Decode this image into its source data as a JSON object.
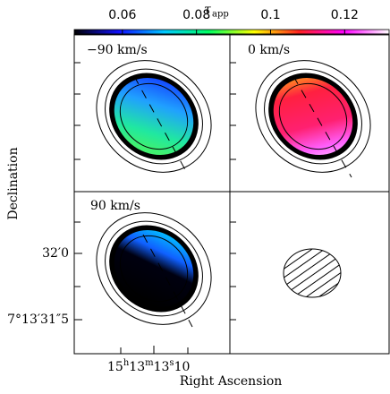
{
  "chart_data": {
    "type": "channel-maps",
    "colorbar": {
      "label": "τ",
      "label_sub": "app",
      "clim": [
        0.047,
        0.132
      ],
      "ticks": [
        0.06,
        0.08,
        0.1,
        0.12
      ],
      "colors": [
        "#000000",
        "#1010ff",
        "#00c8ff",
        "#00ff60",
        "#ffff00",
        "#ff2020",
        "#ff00ff",
        "#ffffff"
      ]
    },
    "panels": [
      "−90 km/s",
      "0 km/s",
      "90 km/s"
    ],
    "ylabel": "Declination",
    "xlabel": "Right Ascension",
    "yticks": [
      "32′0",
      "7°13′31″5"
    ],
    "xtick": {
      "main": "15",
      "h": "h",
      "m_val": "13",
      "m": "m",
      "s_val": "13",
      "s": "s",
      "frac": "10"
    }
  }
}
